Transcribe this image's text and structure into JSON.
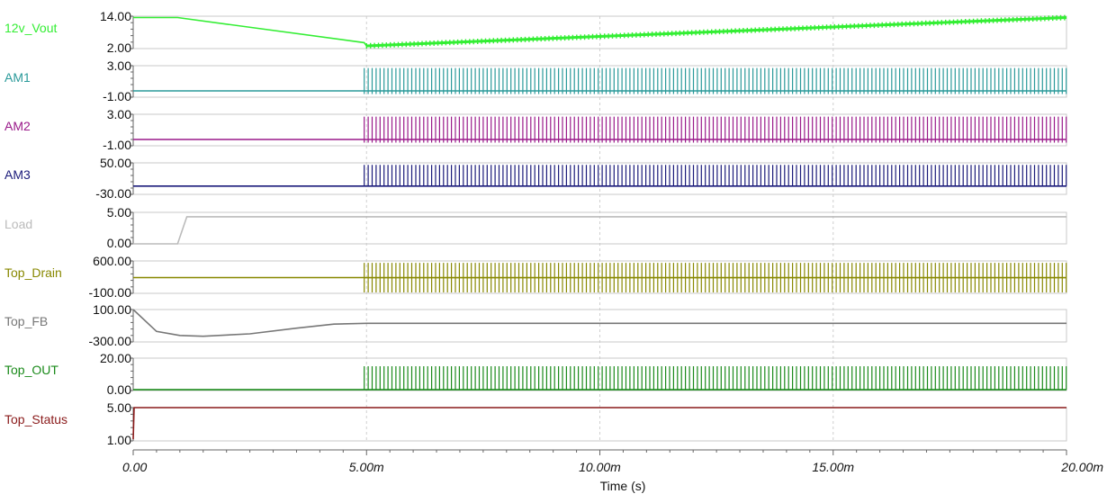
{
  "chart_data": {
    "type": "line",
    "xlabel": "Time (s)",
    "x_ticks": [
      "0.00",
      "5.00m",
      "10.00m",
      "15.00m",
      "20.00m"
    ],
    "x_range_ms": [
      0,
      20
    ],
    "grid": "vertical dashed",
    "series": [
      {
        "name": "12v_Vout",
        "color": "#33ee33",
        "y_ticks": [
          "14.00",
          "2.00"
        ],
        "ylim": [
          2,
          14
        ],
        "points": [
          [
            0,
            13.5
          ],
          [
            0.95,
            13.5
          ],
          [
            4.95,
            4.2
          ],
          [
            5.0,
            3.0
          ],
          [
            20,
            13.5
          ]
        ],
        "switching_start": 5.0,
        "ripple": 2.0
      },
      {
        "name": "AM1",
        "color": "#2a9a9a",
        "y_ticks": [
          "3.00",
          "-1.00"
        ],
        "ylim": [
          -1,
          3
        ],
        "points": [
          [
            0,
            -0.2
          ],
          [
            4.95,
            -0.2
          ]
        ],
        "switching_start": 4.95,
        "pulse_high": 2.7,
        "pulse_low": -0.6,
        "base": -0.2
      },
      {
        "name": "AM2",
        "color": "#9a1a8a",
        "y_ticks": [
          "3.00",
          "-1.00"
        ],
        "ylim": [
          -1,
          3
        ],
        "points": [
          [
            0,
            -0.2
          ],
          [
            4.95,
            -0.2
          ]
        ],
        "switching_start": 4.95,
        "pulse_high": 2.7,
        "pulse_low": -0.6,
        "base": -0.2
      },
      {
        "name": "AM3",
        "color": "#1a1a7a",
        "y_ticks": [
          "50.00",
          "-30.00"
        ],
        "ylim": [
          -30,
          50
        ],
        "points": [
          [
            0,
            -9
          ],
          [
            4.95,
            -9
          ]
        ],
        "switching_start": 4.95,
        "pulse_high": 45,
        "pulse_low": -9,
        "base": -9
      },
      {
        "name": "Load",
        "color": "#bbbbbb",
        "y_ticks": [
          "5.00",
          "0.00"
        ],
        "ylim": [
          0,
          5
        ],
        "points": [
          [
            0,
            0
          ],
          [
            0.95,
            0
          ],
          [
            1.15,
            4.3
          ],
          [
            20,
            4.3
          ]
        ]
      },
      {
        "name": "Top_Drain",
        "color": "#888800",
        "y_ticks": [
          "600.00",
          "-100.00"
        ],
        "ylim": [
          -100,
          600
        ],
        "points": [
          [
            0,
            240
          ],
          [
            4.95,
            240
          ]
        ],
        "switching_start": 4.95,
        "pulse_high": 560,
        "pulse_low": -80,
        "base": 240
      },
      {
        "name": "Top_FB",
        "color": "#777777",
        "y_ticks": [
          "100.00",
          "-300.00"
        ],
        "ylim": [
          -300,
          100
        ],
        "points": [
          [
            0,
            100
          ],
          [
            0.5,
            -170
          ],
          [
            1.0,
            -220
          ],
          [
            1.5,
            -230
          ],
          [
            2.5,
            -200
          ],
          [
            3.5,
            -130
          ],
          [
            4.3,
            -80
          ],
          [
            5,
            -70
          ],
          [
            20,
            -70
          ]
        ]
      },
      {
        "name": "Top_OUT",
        "color": "#1a8a1a",
        "y_ticks": [
          "20.00",
          "0.00"
        ],
        "ylim": [
          0,
          20
        ],
        "points": [
          [
            0,
            0.5
          ],
          [
            4.95,
            0.5
          ]
        ],
        "switching_start": 4.95,
        "pulse_high": 15,
        "pulse_low": 0.5,
        "base": 0.5
      },
      {
        "name": "Top_Status",
        "color": "#8a1a1a",
        "y_ticks": [
          "5.00",
          "1.00"
        ],
        "ylim": [
          1,
          5
        ],
        "points": [
          [
            0,
            1.2
          ],
          [
            0.02,
            5
          ],
          [
            20,
            5
          ]
        ]
      }
    ]
  }
}
